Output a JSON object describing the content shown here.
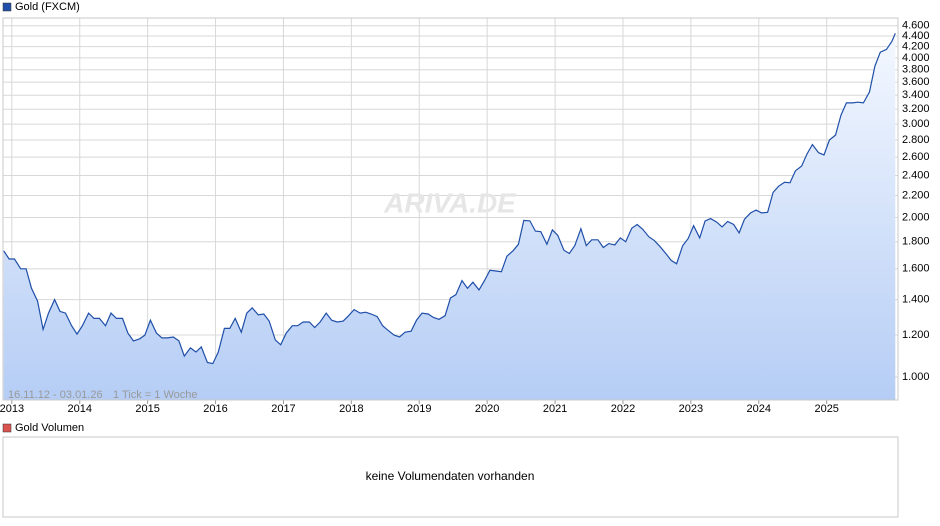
{
  "chart_data": {
    "type": "line",
    "annotation": [
      "16.11.12 - 03.01.26",
      "1 Tick = 1 Woche"
    ],
    "watermark": "ARIVA.DE",
    "log_scale": true,
    "grid": true,
    "xlim": [
      2012.87,
      2026.05
    ],
    "xticks": [
      2013,
      2014,
      2015,
      2016,
      2017,
      2018,
      2019,
      2020,
      2021,
      2022,
      2023,
      2024,
      2025
    ],
    "ylim": [
      905,
      4757
    ],
    "yticks": [
      {
        "value": 1000,
        "label": "1.000"
      },
      {
        "value": 1200,
        "label": "1.200"
      },
      {
        "value": 1400,
        "label": "1.400"
      },
      {
        "value": 1600,
        "label": "1.600"
      },
      {
        "value": 1800,
        "label": "1.800"
      },
      {
        "value": 2000,
        "label": "2.000"
      },
      {
        "value": 2200,
        "label": "2.200"
      },
      {
        "value": 2400,
        "label": "2.400"
      },
      {
        "value": 2600,
        "label": "2.600"
      },
      {
        "value": 2800,
        "label": "2.800"
      },
      {
        "value": 3000,
        "label": "3.000"
      },
      {
        "value": 3200,
        "label": "3.200"
      },
      {
        "value": 3400,
        "label": "3.400"
      },
      {
        "value": 3600,
        "label": "3.600"
      },
      {
        "value": 3800,
        "label": "3.800"
      },
      {
        "value": 4000,
        "label": "4.000"
      },
      {
        "value": 4200,
        "label": "4.200"
      },
      {
        "value": 4400,
        "label": "4.400"
      },
      {
        "value": 4600,
        "label": "4.600"
      }
    ],
    "x": [
      2012.88,
      2012.96,
      2013.04,
      2013.13,
      2013.21,
      2013.29,
      2013.38,
      2013.46,
      2013.54,
      2013.63,
      2013.71,
      2013.79,
      2013.88,
      2013.96,
      2014.04,
      2014.13,
      2014.21,
      2014.29,
      2014.38,
      2014.46,
      2014.54,
      2014.63,
      2014.71,
      2014.79,
      2014.88,
      2014.96,
      2015.04,
      2015.13,
      2015.21,
      2015.29,
      2015.38,
      2015.46,
      2015.54,
      2015.63,
      2015.71,
      2015.79,
      2015.88,
      2015.96,
      2016.04,
      2016.13,
      2016.21,
      2016.29,
      2016.38,
      2016.46,
      2016.54,
      2016.63,
      2016.71,
      2016.79,
      2016.88,
      2016.96,
      2017.04,
      2017.13,
      2017.21,
      2017.29,
      2017.38,
      2017.46,
      2017.54,
      2017.63,
      2017.71,
      2017.79,
      2017.88,
      2017.96,
      2018.04,
      2018.13,
      2018.21,
      2018.29,
      2018.38,
      2018.46,
      2018.54,
      2018.63,
      2018.71,
      2018.79,
      2018.88,
      2018.96,
      2019.04,
      2019.13,
      2019.21,
      2019.29,
      2019.38,
      2019.46,
      2019.54,
      2019.63,
      2019.71,
      2019.79,
      2019.88,
      2019.96,
      2020.04,
      2020.13,
      2020.21,
      2020.29,
      2020.38,
      2020.46,
      2020.54,
      2020.63,
      2020.71,
      2020.79,
      2020.88,
      2020.96,
      2021.04,
      2021.13,
      2021.21,
      2021.29,
      2021.38,
      2021.46,
      2021.54,
      2021.63,
      2021.71,
      2021.79,
      2021.88,
      2021.96,
      2022.04,
      2022.13,
      2022.21,
      2022.29,
      2022.38,
      2022.46,
      2022.54,
      2022.63,
      2022.71,
      2022.79,
      2022.88,
      2022.96,
      2023.04,
      2023.13,
      2023.21,
      2023.29,
      2023.38,
      2023.46,
      2023.54,
      2023.63,
      2023.71,
      2023.79,
      2023.88,
      2023.96,
      2024.04,
      2024.13,
      2024.21,
      2024.29,
      2024.38,
      2024.46,
      2024.54,
      2024.63,
      2024.71,
      2024.79,
      2024.88,
      2024.96,
      2025.04,
      2025.13,
      2025.21,
      2025.29,
      2025.38,
      2025.46,
      2025.54,
      2025.63,
      2025.71,
      2025.79,
      2025.88,
      2025.96,
      2026.01
    ],
    "series": [
      {
        "name": "Gold (FXCM)",
        "color": "#1f4fa8",
        "values": [
          1730,
          1670,
          1670,
          1600,
          1600,
          1470,
          1390,
          1230,
          1320,
          1400,
          1330,
          1320,
          1250,
          1205,
          1250,
          1320,
          1290,
          1290,
          1250,
          1320,
          1290,
          1290,
          1210,
          1170,
          1180,
          1200,
          1280,
          1210,
          1185,
          1185,
          1190,
          1170,
          1095,
          1135,
          1115,
          1140,
          1065,
          1060,
          1115,
          1235,
          1235,
          1290,
          1215,
          1320,
          1350,
          1310,
          1315,
          1275,
          1175,
          1150,
          1210,
          1250,
          1250,
          1270,
          1270,
          1240,
          1270,
          1320,
          1280,
          1270,
          1275,
          1305,
          1340,
          1320,
          1325,
          1315,
          1300,
          1250,
          1225,
          1200,
          1190,
          1215,
          1220,
          1280,
          1320,
          1315,
          1295,
          1285,
          1305,
          1410,
          1430,
          1520,
          1470,
          1510,
          1460,
          1520,
          1590,
          1585,
          1580,
          1690,
          1730,
          1780,
          1975,
          1970,
          1885,
          1880,
          1780,
          1895,
          1850,
          1735,
          1710,
          1770,
          1905,
          1770,
          1815,
          1815,
          1755,
          1785,
          1775,
          1830,
          1800,
          1910,
          1940,
          1900,
          1840,
          1810,
          1765,
          1710,
          1660,
          1635,
          1770,
          1825,
          1930,
          1830,
          1970,
          1990,
          1960,
          1920,
          1965,
          1940,
          1870,
          1985,
          2040,
          2065,
          2040,
          2045,
          2230,
          2290,
          2330,
          2325,
          2450,
          2500,
          2635,
          2745,
          2650,
          2625,
          2800,
          2860,
          3120,
          3290,
          3290,
          3300,
          3290,
          3450,
          3860,
          4100,
          4150,
          4300,
          4450
        ]
      }
    ]
  },
  "volume_panel": {
    "legend": "Gold Volumen",
    "message": "keine Volumendaten vorhanden"
  }
}
